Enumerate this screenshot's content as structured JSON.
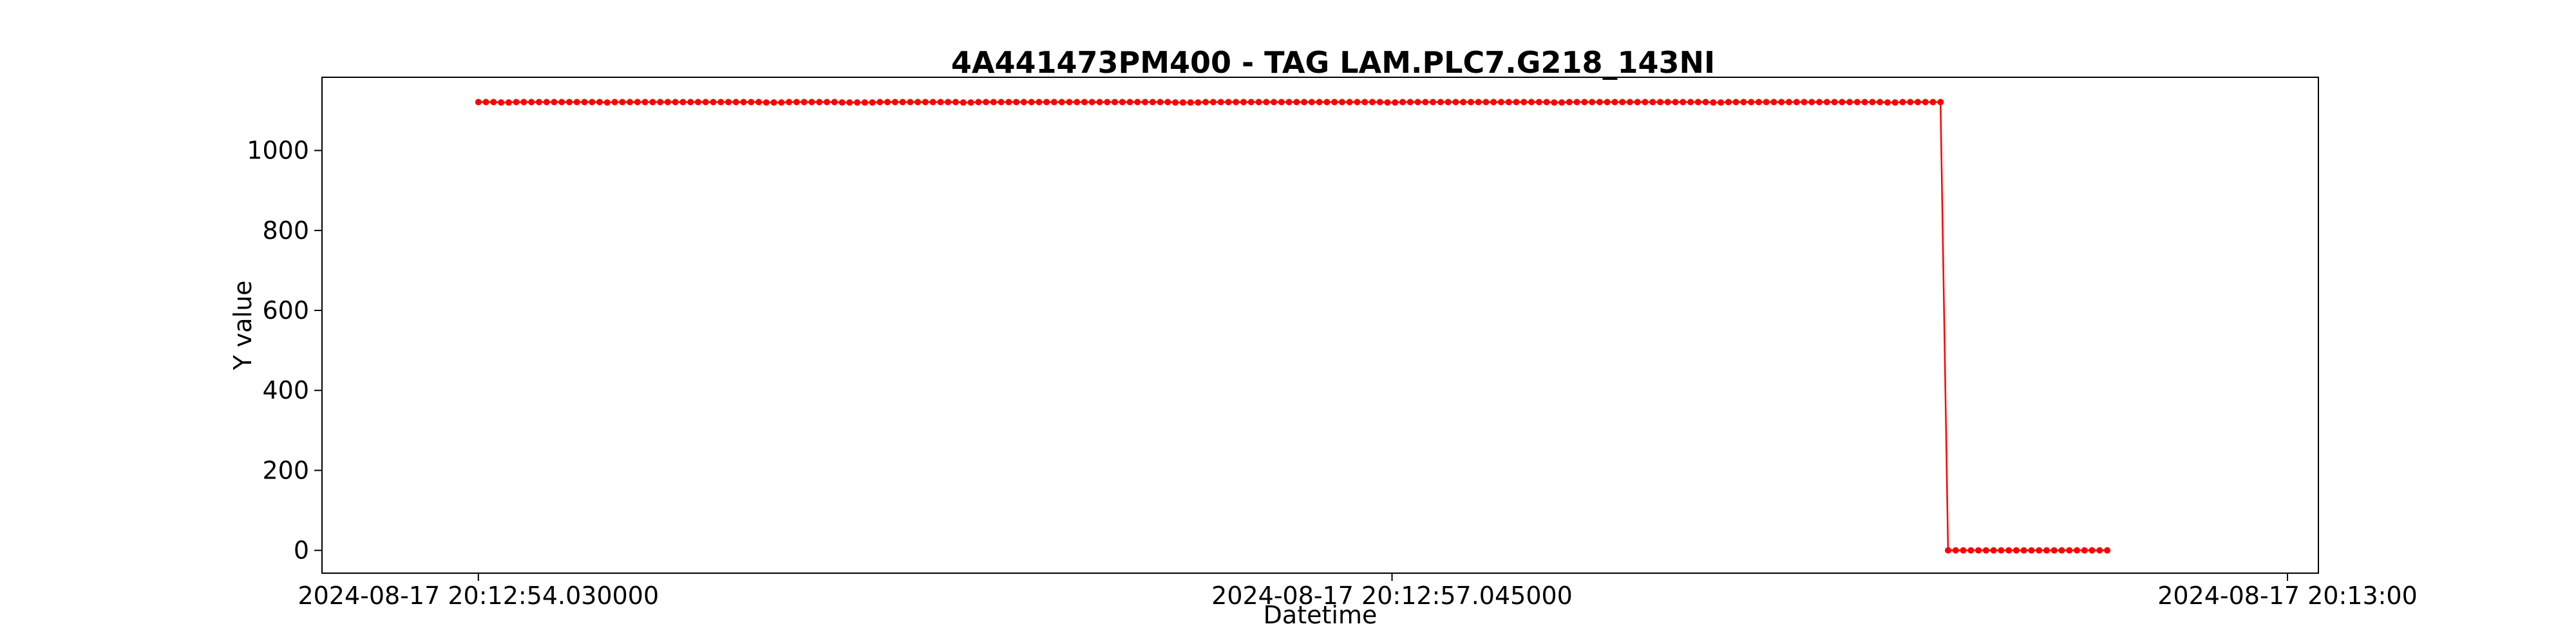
{
  "chart_data": {
    "type": "line",
    "title": "4A441473PM400 - TAG LAM.PLC7.G218_143NI",
    "xlabel": "Datetime",
    "ylabel": "Y value",
    "xlim": [
      "2024-08-17 20:12:53.514",
      "2024-08-17 20:13:00.102"
    ],
    "ylim": [
      -57,
      1183
    ],
    "x_tick_labels": [
      "2024-08-17 20:12:54.030000",
      "2024-08-17 20:12:57.045000",
      "2024-08-17 20:13:00"
    ],
    "y_tick_labels": [
      "0",
      "200",
      "400",
      "600",
      "800",
      "1000"
    ],
    "y_ticks": [
      0,
      200,
      400,
      600,
      800,
      1000
    ],
    "grid": false,
    "legend": "none",
    "marker": "o",
    "series": [
      {
        "color": "#ff0000",
        "x_start": "2024-08-17 20:12:54.030",
        "x_step_ms": 25,
        "values": [
          1121,
          1121,
          1121,
          1120,
          1120,
          1121,
          1121,
          1121,
          1121,
          1121,
          1121,
          1121,
          1121,
          1121,
          1121,
          1121,
          1121,
          1120,
          1121,
          1121,
          1121,
          1121,
          1121,
          1121,
          1121,
          1121,
          1121,
          1121,
          1121,
          1121,
          1121,
          1121,
          1121,
          1121,
          1121,
          1121,
          1121,
          1121,
          1120,
          1120,
          1120,
          1121,
          1121,
          1121,
          1121,
          1121,
          1121,
          1121,
          1120,
          1120,
          1120,
          1120,
          1120,
          1121,
          1121,
          1121,
          1121,
          1121,
          1121,
          1121,
          1121,
          1121,
          1121,
          1121,
          1120,
          1120,
          1121,
          1121,
          1121,
          1121,
          1121,
          1121,
          1121,
          1121,
          1121,
          1121,
          1121,
          1121,
          1121,
          1121,
          1121,
          1121,
          1121,
          1121,
          1121,
          1121,
          1121,
          1121,
          1121,
          1121,
          1121,
          1121,
          1120,
          1120,
          1120,
          1120,
          1121,
          1121,
          1121,
          1121,
          1121,
          1121,
          1121,
          1121,
          1121,
          1121,
          1121,
          1121,
          1121,
          1121,
          1121,
          1121,
          1121,
          1121,
          1121,
          1121,
          1121,
          1121,
          1121,
          1121,
          1120,
          1120,
          1121,
          1121,
          1121,
          1121,
          1121,
          1121,
          1121,
          1121,
          1121,
          1121,
          1121,
          1121,
          1121,
          1121,
          1121,
          1121,
          1121,
          1121,
          1121,
          1121,
          1120,
          1120,
          1121,
          1121,
          1121,
          1121,
          1121,
          1121,
          1121,
          1121,
          1121,
          1121,
          1121,
          1121,
          1121,
          1121,
          1121,
          1121,
          1121,
          1121,
          1121,
          1120,
          1120,
          1121,
          1121,
          1121,
          1121,
          1121,
          1121,
          1121,
          1121,
          1121,
          1121,
          1121,
          1121,
          1121,
          1121,
          1121,
          1121,
          1121,
          1121,
          1121,
          1121,
          1121,
          1120,
          1120,
          1121,
          1121,
          1121,
          1121,
          1121,
          1121,
          0,
          0,
          0,
          0,
          0,
          0,
          0,
          0,
          0,
          0,
          0,
          0,
          0,
          0,
          0,
          0,
          0,
          0,
          0,
          0,
          0,
          0
        ]
      }
    ]
  }
}
